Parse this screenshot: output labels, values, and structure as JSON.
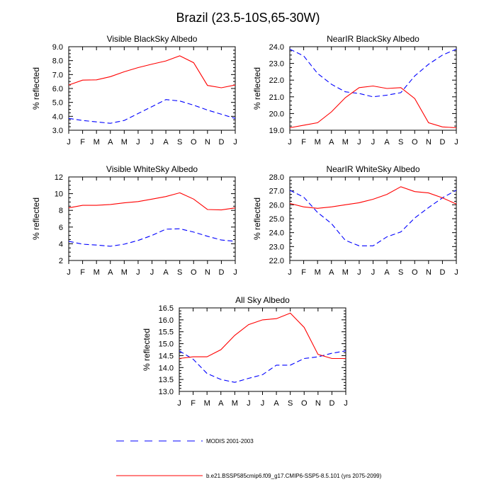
{
  "figure": {
    "title": "Brazil (23.5-10S,65-30W)",
    "legend": [
      {
        "label": "MODIS 2001-2003",
        "color": "#0000ff",
        "dash": true
      },
      {
        "label": "b.e21.BSSP585cmip6.f09_g17.CMIP6-SSP5-8.5.101 (yrs 2075-2099)",
        "color": "#ff0000",
        "dash": false
      }
    ]
  },
  "chart_data": [
    {
      "type": "line",
      "title": "Visible BlackSky Albedo",
      "ylabel": "% reflected",
      "categories": [
        "J",
        "F",
        "M",
        "A",
        "M",
        "J",
        "J",
        "A",
        "S",
        "O",
        "N",
        "D",
        "J"
      ],
      "ylim": [
        3.0,
        9.0
      ],
      "yticks": [
        "3.0",
        "4.0",
        "5.0",
        "6.0",
        "7.0",
        "8.0",
        "9.0"
      ],
      "series": [
        {
          "values": [
            3.85,
            3.7,
            3.6,
            3.5,
            3.7,
            4.2,
            4.7,
            5.2,
            5.1,
            4.8,
            4.45,
            4.15,
            3.85
          ],
          "color": "#0000ff",
          "dash": true
        },
        {
          "values": [
            6.25,
            6.6,
            6.62,
            6.85,
            7.2,
            7.5,
            7.75,
            7.98,
            8.35,
            7.85,
            6.22,
            6.05,
            6.25
          ],
          "color": "#ff0000",
          "dash": false
        }
      ]
    },
    {
      "type": "line",
      "title": "NearIR BlackSky Albedo",
      "ylabel": "% reflected",
      "categories": [
        "J",
        "F",
        "M",
        "A",
        "M",
        "J",
        "J",
        "A",
        "S",
        "O",
        "N",
        "D",
        "J"
      ],
      "ylim": [
        19.0,
        24.0
      ],
      "yticks": [
        "19.0",
        "20.0",
        "21.0",
        "22.0",
        "23.0",
        "24.0"
      ],
      "series": [
        {
          "values": [
            23.85,
            23.45,
            22.4,
            21.75,
            21.3,
            21.2,
            21.0,
            21.1,
            21.25,
            22.25,
            22.95,
            23.5,
            23.85
          ],
          "color": "#0000ff",
          "dash": true
        },
        {
          "values": [
            19.15,
            19.3,
            19.45,
            20.1,
            20.95,
            21.55,
            21.65,
            21.5,
            21.55,
            20.9,
            19.45,
            19.2,
            19.15
          ],
          "color": "#ff0000",
          "dash": false
        }
      ]
    },
    {
      "type": "line",
      "title": "Visible WhiteSky Albedo",
      "ylabel": "% reflected",
      "categories": [
        "J",
        "F",
        "M",
        "A",
        "M",
        "J",
        "J",
        "A",
        "S",
        "O",
        "N",
        "D",
        "J"
      ],
      "ylim": [
        2,
        12
      ],
      "yticks": [
        "2",
        "4",
        "6",
        "8",
        "10",
        "12"
      ],
      "series": [
        {
          "values": [
            4.3,
            3.95,
            3.85,
            3.7,
            3.95,
            4.4,
            5.0,
            5.75,
            5.8,
            5.4,
            4.9,
            4.45,
            4.3
          ],
          "color": "#0000ff",
          "dash": true
        },
        {
          "values": [
            8.3,
            8.6,
            8.6,
            8.7,
            8.9,
            9.05,
            9.35,
            9.65,
            10.1,
            9.35,
            8.1,
            8.05,
            8.3
          ],
          "color": "#ff0000",
          "dash": false
        }
      ]
    },
    {
      "type": "line",
      "title": "NearIR WhiteSky Albedo",
      "ylabel": "% reflected",
      "categories": [
        "J",
        "F",
        "M",
        "A",
        "M",
        "J",
        "J",
        "A",
        "S",
        "O",
        "N",
        "D",
        "J"
      ],
      "ylim": [
        22.0,
        28.0
      ],
      "yticks": [
        "22.0",
        "23.0",
        "24.0",
        "25.0",
        "26.0",
        "27.0",
        "28.0"
      ],
      "series": [
        {
          "values": [
            27.05,
            26.55,
            25.45,
            24.65,
            23.45,
            23.05,
            23.05,
            23.7,
            24.05,
            25.05,
            25.8,
            26.5,
            27.05
          ],
          "color": "#0000ff",
          "dash": true
        },
        {
          "values": [
            26.1,
            25.85,
            25.75,
            25.85,
            26.0,
            26.15,
            26.4,
            26.75,
            27.3,
            26.95,
            26.85,
            26.5,
            26.05
          ],
          "color": "#ff0000",
          "dash": false
        }
      ]
    },
    {
      "type": "line",
      "title": "All Sky Albedo",
      "ylabel": "% reflected",
      "categories": [
        "J",
        "F",
        "M",
        "A",
        "M",
        "J",
        "J",
        "A",
        "S",
        "O",
        "N",
        "D",
        "J"
      ],
      "ylim": [
        13.0,
        16.5
      ],
      "yticks": [
        "13.0",
        "13.5",
        "14.0",
        "14.5",
        "15.0",
        "15.5",
        "16.0",
        "16.5"
      ],
      "series": [
        {
          "values": [
            14.7,
            14.35,
            13.75,
            13.5,
            13.38,
            13.55,
            13.7,
            14.1,
            14.1,
            14.38,
            14.45,
            14.6,
            14.7
          ],
          "color": "#0000ff",
          "dash": true
        },
        {
          "values": [
            14.38,
            14.45,
            14.45,
            14.75,
            15.35,
            15.8,
            16.0,
            16.05,
            16.28,
            15.68,
            14.55,
            14.38,
            14.38
          ],
          "color": "#ff0000",
          "dash": false
        }
      ]
    }
  ]
}
